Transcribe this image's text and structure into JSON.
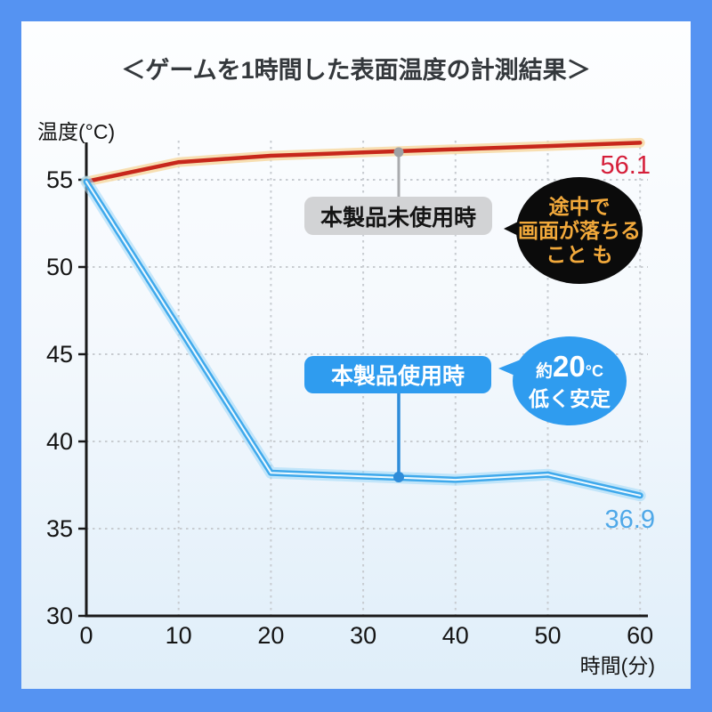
{
  "title": "＜ゲームを1時間した表面温度の計測結果＞",
  "chart_data": {
    "type": "line",
    "title": "＜ゲームを1時間した表面温度の計測結果＞",
    "xlabel": "時間(分)",
    "ylabel": "温度(°C)",
    "xlim": [
      0,
      60
    ],
    "ylim": [
      30,
      57.5
    ],
    "x_ticks": [
      0,
      10,
      20,
      30,
      40,
      50,
      60
    ],
    "y_ticks": [
      30,
      35,
      40,
      45,
      50,
      55
    ],
    "grid": "dotted",
    "legend_position": "inline-labels",
    "series": [
      {
        "name": "本製品未使用時",
        "color": "#C7271B",
        "glow_color": "#F7D9A4",
        "x": [
          0,
          10,
          20,
          30,
          40,
          50,
          60
        ],
        "values": [
          54.9,
          55.5,
          55.7,
          55.8,
          55.9,
          56.0,
          56.1
        ],
        "end_label": "56.1",
        "end_label_color": "#D51F3A"
      },
      {
        "name": "本製品使用時",
        "color": "#3FA9EC",
        "glow_color": "#A5DBF8",
        "x": [
          0,
          20,
          30,
          40,
          50,
          60
        ],
        "values": [
          54.9,
          38.2,
          38.0,
          37.8,
          38.1,
          36.9
        ],
        "end_label": "36.9",
        "end_label_color": "#4FA8E8"
      }
    ],
    "annotations": {
      "black_bubble": {
        "lines": [
          "途中で",
          "画面が落ちる",
          "こと も"
        ],
        "text_color": "#F2A93B",
        "bg_color": "#0B0B0B"
      },
      "blue_bubble": {
        "prefix": "約",
        "big": "20",
        "unit": "°C",
        "line2": "低く安定",
        "text_color": "#FFFFFF",
        "bg_color": "#2F9CEF"
      }
    }
  },
  "labels": {
    "series_red_box": "本製品未使用時",
    "series_blue_box": "本製品使用時"
  },
  "colors": {
    "frame": "#5593F2",
    "card_top": "#FDFEFF",
    "card_bottom": "#DFEEF9",
    "grid": "#C8CCD1",
    "axis": "#1A1A1A"
  }
}
